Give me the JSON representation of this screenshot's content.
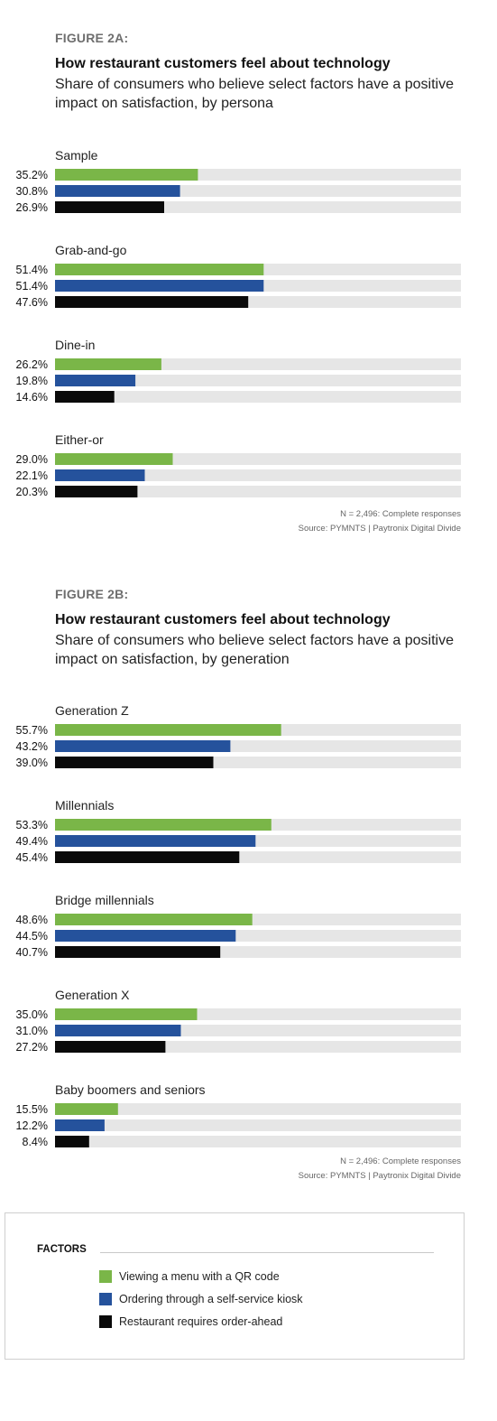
{
  "colors": {
    "qr": "#7ab648",
    "kiosk": "#25529c",
    "orderahead": "#0a0a0a",
    "track": "#e6e6e6"
  },
  "figures": [
    {
      "label": "FIGURE 2A:",
      "title": "How restaurant customers feel about technology",
      "subtitle": "Share of consumers who believe select factors have a positive impact on satisfaction, by persona",
      "note1": "N = 2,496: Complete responses",
      "note2": "Source: PYMNTS | Paytronix   Digital Divide"
    },
    {
      "label": "FIGURE 2B:",
      "title": "How restaurant customers feel about technology",
      "subtitle": "Share of consumers who believe select factors have a positive impact on satisfaction, by generation",
      "note1": "N = 2,496: Complete responses",
      "note2": "Source: PYMNTS | Paytronix   Digital Divide"
    }
  ],
  "chart_data": [
    {
      "type": "bar",
      "orientation": "horizontal",
      "title": "How restaurant customers feel about technology",
      "categories": [
        "Sample",
        "Grab-and-go",
        "Dine-in",
        "Either-or"
      ],
      "series": [
        {
          "name": "Viewing a menu with a QR code",
          "values": [
            35.2,
            51.4,
            26.2,
            29.0
          ],
          "labels": [
            "35.2%",
            "51.4%",
            "26.2%",
            "29.0%"
          ]
        },
        {
          "name": "Ordering through a self-service kiosk",
          "values": [
            30.8,
            51.4,
            19.8,
            22.1
          ],
          "labels": [
            "30.8%",
            "51.4%",
            "19.8%",
            "22.1%"
          ]
        },
        {
          "name": "Restaurant requires order-ahead",
          "values": [
            26.9,
            47.6,
            14.6,
            20.3
          ],
          "labels": [
            "26.9%",
            "47.6%",
            "14.6%",
            "20.3%"
          ]
        }
      ],
      "xlim": [
        0,
        100
      ],
      "grid": false,
      "legend": "bottom"
    },
    {
      "type": "bar",
      "orientation": "horizontal",
      "title": "How restaurant customers feel about technology",
      "categories": [
        "Generation Z",
        "Millennials",
        "Bridge millennials",
        "Generation X",
        "Baby boomers and seniors"
      ],
      "series": [
        {
          "name": "Viewing a menu with a QR code",
          "values": [
            55.7,
            53.3,
            48.6,
            35.0,
            15.5
          ],
          "labels": [
            "55.7%",
            "53.3%",
            "48.6%",
            "35.0%",
            "15.5%"
          ]
        },
        {
          "name": "Ordering through a self-service kiosk",
          "values": [
            43.2,
            49.4,
            44.5,
            31.0,
            12.2
          ],
          "labels": [
            "43.2%",
            "49.4%",
            "44.5%",
            "31.0%",
            "12.2%"
          ]
        },
        {
          "name": "Restaurant requires order-ahead",
          "values": [
            39.0,
            45.4,
            40.7,
            27.2,
            8.4
          ],
          "labels": [
            "39.0%",
            "45.4%",
            "40.7%",
            "27.2%",
            "8.4%"
          ]
        }
      ],
      "xlim": [
        0,
        100
      ],
      "grid": false,
      "legend": "bottom"
    }
  ],
  "legend": {
    "title": "FACTORS",
    "items": [
      {
        "label": "Viewing a menu with a QR code",
        "color": "#7ab648"
      },
      {
        "label": "Ordering through a self-service kiosk",
        "color": "#25529c"
      },
      {
        "label": "Restaurant requires order-ahead",
        "color": "#0a0a0a"
      }
    ]
  }
}
